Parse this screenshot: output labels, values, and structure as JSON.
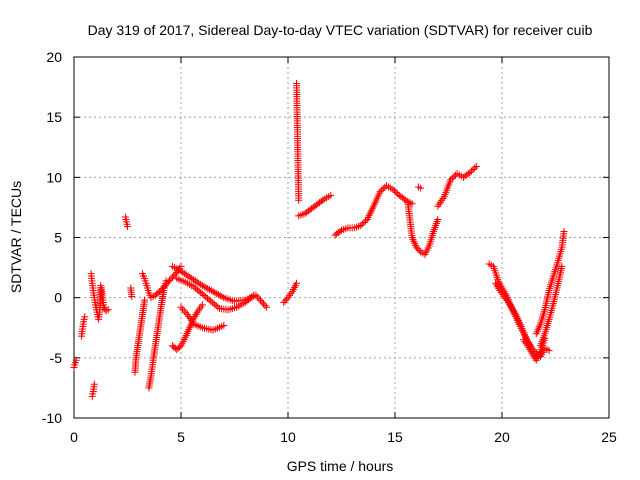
{
  "chart_data": {
    "type": "scatter",
    "title": "Day 319 of 2017, Sidereal Day-to-day VTEC variation (SDTVAR) for receiver cuib",
    "xlabel": "GPS time / hours",
    "ylabel": "SDTVAR / TECUs",
    "xlim": [
      0,
      25
    ],
    "ylim": [
      -10,
      20
    ],
    "xticks": [
      0,
      5,
      10,
      15,
      20,
      25
    ],
    "yticks": [
      -10,
      -5,
      0,
      5,
      10,
      15,
      20
    ],
    "xtick_labels": [
      "0",
      "5",
      "10",
      "15",
      "20",
      "25"
    ],
    "ytick_labels": [
      "-10",
      "-5",
      "0",
      "5",
      "10",
      "15",
      "20"
    ],
    "grid": true,
    "marker": "+",
    "color": "#ff0000",
    "series": [
      {
        "name": "s1",
        "x": [
          0.0,
          0.1
        ],
        "y": [
          -5.8,
          -5.2
        ]
      },
      {
        "name": "s2",
        "x": [
          0.35,
          0.4,
          0.45,
          0.5
        ],
        "y": [
          -3.2,
          -2.6,
          -2.0,
          -1.6
        ]
      },
      {
        "name": "s3",
        "x": [
          0.8,
          0.85,
          0.9,
          0.95,
          1.0,
          1.05,
          1.1,
          1.15,
          1.2,
          1.25,
          1.3
        ],
        "y": [
          2.0,
          1.2,
          0.6,
          0.0,
          -0.6,
          -1.0,
          -1.4,
          -1.8,
          -1.2,
          0.8,
          0.3
        ]
      },
      {
        "name": "s4",
        "x": [
          0.85,
          0.9,
          0.95
        ],
        "y": [
          -8.2,
          -7.8,
          -7.2
        ]
      },
      {
        "name": "s5",
        "x": [
          1.25,
          1.3,
          1.35,
          1.4,
          1.5,
          1.6
        ],
        "y": [
          1.0,
          0.5,
          -0.2,
          -0.8,
          -1.1,
          -1.0
        ]
      },
      {
        "name": "s6",
        "x": [
          2.4,
          2.45,
          2.5
        ],
        "y": [
          6.7,
          6.3,
          5.9
        ]
      },
      {
        "name": "s7",
        "x": [
          2.65,
          2.7
        ],
        "y": [
          0.8,
          0.1
        ]
      },
      {
        "name": "s8",
        "x": [
          2.85,
          2.9,
          3.0,
          3.1,
          3.2,
          3.3
        ],
        "y": [
          -6.2,
          -5.0,
          -3.8,
          -2.6,
          -1.4,
          -0.2
        ]
      },
      {
        "name": "s9",
        "x": [
          3.2,
          3.3,
          3.4,
          3.5,
          3.6,
          3.8,
          4.0,
          4.2,
          4.4,
          4.6,
          4.8,
          5.0
        ],
        "y": [
          2.0,
          1.6,
          1.0,
          0.4,
          0.0,
          0.2,
          0.5,
          0.9,
          1.3,
          1.7,
          2.1,
          2.6
        ]
      },
      {
        "name": "s10",
        "x": [
          3.5,
          3.6,
          3.7,
          3.8,
          3.9,
          4.0,
          4.1,
          4.2,
          4.3
        ],
        "y": [
          -7.5,
          -6.5,
          -5.2,
          -4.0,
          -2.8,
          -1.6,
          -0.4,
          0.6,
          1.4
        ]
      },
      {
        "name": "s11",
        "x": [
          4.6,
          4.8,
          5.0,
          5.2,
          5.4,
          5.6,
          5.8,
          6.0
        ],
        "y": [
          -4.0,
          -4.3,
          -4.0,
          -3.3,
          -2.5,
          -1.7,
          -1.1,
          -0.6
        ]
      },
      {
        "name": "s12",
        "x": [
          4.6,
          5.0,
          5.5,
          6.0,
          6.5,
          7.0,
          7.5,
          8.0,
          8.5,
          9.0
        ],
        "y": [
          2.6,
          2.2,
          1.6,
          1.0,
          0.5,
          0.0,
          -0.3,
          -0.2,
          0.2,
          -0.8
        ]
      },
      {
        "name": "s13",
        "x": [
          4.8,
          5.2,
          5.6,
          6.0,
          6.4,
          6.8,
          7.2,
          7.6,
          8.0,
          8.4
        ],
        "y": [
          1.6,
          1.3,
          0.9,
          0.3,
          -0.3,
          -0.9,
          -1.0,
          -0.8,
          -0.4,
          0.2
        ]
      },
      {
        "name": "s14",
        "x": [
          5.0,
          5.3,
          5.6,
          6.0,
          6.5,
          7.0
        ],
        "y": [
          -0.8,
          -1.4,
          -2.2,
          -2.5,
          -2.7,
          -2.3
        ]
      },
      {
        "name": "s15",
        "x": [
          9.8,
          10.0,
          10.2,
          10.4
        ],
        "y": [
          -0.4,
          0.0,
          0.5,
          1.2
        ]
      },
      {
        "name": "s16",
        "x": [
          10.4,
          10.5
        ],
        "y": [
          17.8,
          8.1
        ]
      },
      {
        "name": "s17",
        "x": [
          10.5,
          10.8,
          11.1,
          11.4,
          11.7,
          12.0
        ],
        "y": [
          6.8,
          7.0,
          7.4,
          7.8,
          8.2,
          8.5
        ]
      },
      {
        "name": "s18",
        "x": [
          12.2,
          12.5,
          12.8,
          13.1,
          13.4,
          13.7,
          14.0,
          14.3,
          14.6,
          14.9,
          15.2,
          15.5,
          15.8
        ],
        "y": [
          5.2,
          5.6,
          5.8,
          5.8,
          6.0,
          6.5,
          7.6,
          8.8,
          9.3,
          9.0,
          8.5,
          8.1,
          7.8
        ]
      },
      {
        "name": "s19",
        "x": [
          15.6,
          15.8,
          16.0,
          16.2,
          16.4,
          16.6,
          16.8,
          17.0
        ],
        "y": [
          7.9,
          5.0,
          4.2,
          3.8,
          3.6,
          4.3,
          5.5,
          6.5
        ]
      },
      {
        "name": "s20",
        "x": [
          16.1,
          16.2
        ],
        "y": [
          9.2,
          9.1
        ]
      },
      {
        "name": "s21",
        "x": [
          17.0,
          17.3,
          17.6,
          17.9,
          18.2,
          18.5,
          18.8
        ],
        "y": [
          7.6,
          8.4,
          9.8,
          10.3,
          10.0,
          10.4,
          10.9
        ]
      },
      {
        "name": "s22",
        "x": [
          19.4,
          19.6,
          19.8,
          20.0,
          20.2,
          20.4,
          20.6,
          20.8,
          21.0,
          21.2,
          21.4,
          21.6,
          21.8,
          22.0,
          22.2
        ],
        "y": [
          2.8,
          2.6,
          1.5,
          0.8,
          0.2,
          -0.6,
          -1.4,
          -2.2,
          -2.9,
          -3.6,
          -4.2,
          -4.6,
          -4.9,
          -4.2,
          -4.4
        ]
      },
      {
        "name": "s23",
        "x": [
          19.7,
          19.9,
          20.1,
          20.3,
          20.5,
          20.7,
          20.9,
          21.1,
          21.3
        ],
        "y": [
          1.2,
          0.6,
          0.1,
          -0.4,
          -1.0,
          -1.6,
          -2.4,
          -3.3,
          -4.0
        ]
      },
      {
        "name": "s24",
        "x": [
          21.0,
          21.2,
          21.4,
          21.6,
          21.8,
          22.0
        ],
        "y": [
          -3.5,
          -4.0,
          -4.6,
          -5.2,
          -4.5,
          -3.4
        ]
      },
      {
        "name": "s25",
        "x": [
          21.6,
          21.8,
          22.0,
          22.2,
          22.4,
          22.6,
          22.8,
          22.9
        ],
        "y": [
          -3.0,
          -2.2,
          -1.0,
          0.6,
          1.8,
          2.9,
          4.2,
          5.5
        ]
      },
      {
        "name": "s26",
        "x": [
          21.8,
          22.0,
          22.2,
          22.4,
          22.6,
          22.8
        ],
        "y": [
          -4.0,
          -3.0,
          -1.8,
          -0.5,
          1.0,
          2.6
        ]
      }
    ]
  }
}
